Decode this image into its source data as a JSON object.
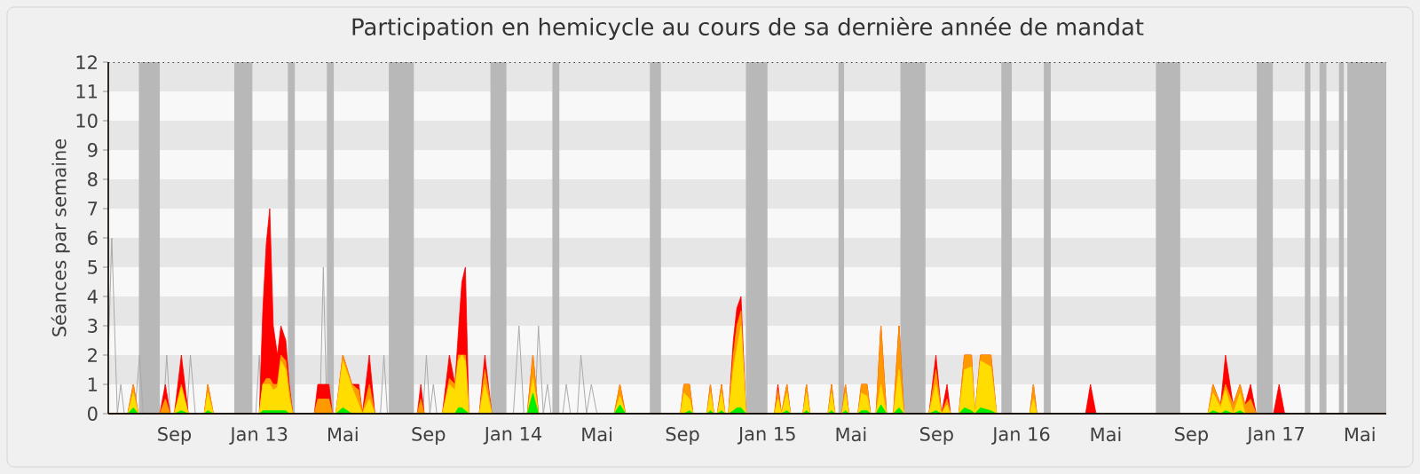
{
  "chart_data": {
    "type": "area",
    "title": "Participation en hemicycle au cours de sa dernière année de mandat",
    "ylabel": "Séances par semaine",
    "xlim": [
      "2012-05-29",
      "2017-06-08"
    ],
    "ylim": [
      0,
      12
    ],
    "yticks": [
      0,
      1,
      2,
      3,
      4,
      5,
      6,
      7,
      8,
      9,
      10,
      11,
      12
    ],
    "xticks": [
      {
        "value": "2012-09-01",
        "label": "Sep"
      },
      {
        "value": "2013-01-01",
        "label": "Jan 13"
      },
      {
        "value": "2013-05-01",
        "label": "Mai"
      },
      {
        "value": "2013-09-01",
        "label": "Sep"
      },
      {
        "value": "2014-01-01",
        "label": "Jan 14"
      },
      {
        "value": "2014-05-01",
        "label": "Mai"
      },
      {
        "value": "2014-09-01",
        "label": "Sep"
      },
      {
        "value": "2015-01-01",
        "label": "Jan 15"
      },
      {
        "value": "2015-05-01",
        "label": "Mai"
      },
      {
        "value": "2015-09-01",
        "label": "Sep"
      },
      {
        "value": "2016-01-01",
        "label": "Jan 16"
      },
      {
        "value": "2016-05-01",
        "label": "Mai"
      },
      {
        "value": "2016-09-01",
        "label": "Sep"
      },
      {
        "value": "2017-01-01",
        "label": "Jan 17"
      },
      {
        "value": "2017-05-01",
        "label": "Mai"
      }
    ],
    "bands": [
      {
        "axis": "y",
        "from": 1,
        "to": 2,
        "color": "#e6e6e6"
      },
      {
        "axis": "y",
        "from": 3,
        "to": 4,
        "color": "#e6e6e6"
      },
      {
        "axis": "y",
        "from": 5,
        "to": 6,
        "color": "#e6e6e6"
      },
      {
        "axis": "y",
        "from": 7,
        "to": 8,
        "color": "#e6e6e6"
      },
      {
        "axis": "y",
        "from": 9,
        "to": 10,
        "color": "#e6e6e6"
      },
      {
        "axis": "y",
        "from": 11,
        "to": 12,
        "color": "#e6e6e6"
      },
      {
        "axis": "x",
        "from": "2012-07-12",
        "to": "2012-08-11",
        "color": "#b8b8b8"
      },
      {
        "axis": "x",
        "from": "2012-11-26",
        "to": "2012-12-22",
        "color": "#b8b8b8"
      },
      {
        "axis": "x",
        "from": "2013-02-11",
        "to": "2013-02-21",
        "color": "#b8b8b8"
      },
      {
        "axis": "x",
        "from": "2013-04-08",
        "to": "2013-04-18",
        "color": "#b8b8b8"
      },
      {
        "axis": "x",
        "from": "2013-07-06",
        "to": "2013-08-11",
        "color": "#b8b8b8"
      },
      {
        "axis": "x",
        "from": "2013-11-29",
        "to": "2013-12-22",
        "color": "#b8b8b8"
      },
      {
        "axis": "x",
        "from": "2014-02-26",
        "to": "2014-03-08",
        "color": "#b8b8b8"
      },
      {
        "axis": "x",
        "from": "2014-07-16",
        "to": "2014-08-01",
        "color": "#b8b8b8"
      },
      {
        "axis": "x",
        "from": "2014-12-01",
        "to": "2015-01-01",
        "color": "#b8b8b8"
      },
      {
        "axis": "x",
        "from": "2015-04-13",
        "to": "2015-04-21",
        "color": "#b8b8b8"
      },
      {
        "axis": "x",
        "from": "2015-07-11",
        "to": "2015-08-16",
        "color": "#b8b8b8"
      },
      {
        "axis": "x",
        "from": "2015-12-03",
        "to": "2015-12-18",
        "color": "#b8b8b8"
      },
      {
        "axis": "x",
        "from": "2016-02-02",
        "to": "2016-02-12",
        "color": "#b8b8b8"
      },
      {
        "axis": "x",
        "from": "2016-07-12",
        "to": "2016-08-16",
        "color": "#b8b8b8"
      },
      {
        "axis": "x",
        "from": "2016-12-04",
        "to": "2016-12-27",
        "color": "#b8b8b8"
      },
      {
        "axis": "x",
        "from": "2017-02-11",
        "to": "2017-02-19",
        "color": "#b8b8b8"
      },
      {
        "axis": "x",
        "from": "2017-03-04",
        "to": "2017-03-14",
        "color": "#b8b8b8"
      },
      {
        "axis": "x",
        "from": "2017-04-01",
        "to": "2017-04-08",
        "color": "#b8b8b8"
      },
      {
        "axis": "x",
        "from": "2017-04-13",
        "to": "2017-06-08",
        "color": "#b8b8b8"
      }
    ],
    "ref_lines": [
      {
        "axis": "y",
        "value": 12,
        "line_style": "dotted",
        "color": "#000000"
      }
    ],
    "x": [
      "2012-06-26",
      "2012-07-04",
      "2012-07-11",
      "2012-08-11",
      "2012-08-19",
      "2012-08-26",
      "2012-09-01",
      "2012-09-11",
      "2012-09-21",
      "2012-10-14",
      "2012-10-19",
      "2012-10-27",
      "2013-01-01",
      "2013-01-06",
      "2013-01-11",
      "2013-01-16",
      "2013-01-21",
      "2013-01-27",
      "2013-02-01",
      "2013-02-08",
      "2013-02-13",
      "2013-02-18",
      "2013-03-21",
      "2013-03-26",
      "2013-04-11",
      "2013-04-16",
      "2013-04-21",
      "2013-05-01",
      "2013-05-14",
      "2013-05-24",
      "2013-05-29",
      "2013-06-08",
      "2013-06-16",
      "2013-08-16",
      "2013-08-21",
      "2013-08-26",
      "2013-09-21",
      "2013-10-01",
      "2013-10-09",
      "2013-10-14",
      "2013-10-19",
      "2013-10-24",
      "2013-10-29",
      "2013-11-13",
      "2013-11-21",
      "2013-11-26",
      "2013-12-01",
      "2014-01-21",
      "2014-01-29",
      "2014-02-06",
      "2014-05-26",
      "2014-06-03",
      "2014-06-11",
      "2014-08-29",
      "2014-09-03",
      "2014-09-11",
      "2014-09-16",
      "2014-10-06",
      "2014-10-11",
      "2014-10-16",
      "2014-10-21",
      "2014-10-27",
      "2014-11-01",
      "2014-11-06",
      "2014-11-13",
      "2014-11-18",
      "2014-11-24",
      "2014-12-01",
      "2015-01-11",
      "2015-01-16",
      "2015-01-21",
      "2015-01-29",
      "2015-02-03",
      "2015-02-21",
      "2015-02-26",
      "2015-03-03",
      "2015-03-29",
      "2015-04-03",
      "2015-04-08",
      "2015-04-18",
      "2015-04-23",
      "2015-04-28",
      "2015-05-11",
      "2015-05-16",
      "2015-05-24",
      "2015-05-29",
      "2015-06-06",
      "2015-06-13",
      "2015-06-21",
      "2015-07-01",
      "2015-07-09",
      "2015-07-16",
      "2015-08-21",
      "2015-08-31",
      "2015-09-08",
      "2015-09-16",
      "2015-09-21",
      "2015-10-03",
      "2015-10-11",
      "2015-10-21",
      "2015-10-26",
      "2015-11-03",
      "2015-11-18",
      "2015-11-26",
      "2016-01-13",
      "2016-01-18",
      "2016-01-23",
      "2016-04-02",
      "2016-04-09",
      "2016-04-17",
      "2016-09-25",
      "2016-10-02",
      "2016-10-13",
      "2016-10-20",
      "2016-10-31",
      "2016-11-10",
      "2016-11-17",
      "2016-11-25",
      "2016-12-03",
      "2016-12-28",
      "2017-01-05",
      "2017-01-13"
    ],
    "series": [
      {
        "type": "line",
        "color": "#aaaaaa",
        "x": [
          "2012-05-29",
          "2012-06-03",
          "2012-06-11",
          "2012-06-16",
          "2012-06-21",
          "2012-07-06",
          "2012-07-13",
          "2012-07-18",
          "2012-08-16",
          "2012-08-21",
          "2012-08-26",
          "2012-09-19",
          "2012-09-24",
          "2012-10-01",
          "2012-12-27",
          "2013-01-01",
          "2013-01-04",
          "2013-03-29",
          "2013-04-03",
          "2013-04-08",
          "2013-06-24",
          "2013-06-29",
          "2013-07-04",
          "2013-08-24",
          "2013-08-29",
          "2013-09-03",
          "2013-09-08",
          "2013-09-13",
          "2014-01-01",
          "2014-01-09",
          "2014-01-16",
          "2014-02-01",
          "2014-02-06",
          "2014-02-13",
          "2014-02-19",
          "2014-02-24",
          "2014-03-13",
          "2014-03-18",
          "2014-03-24",
          "2014-04-03",
          "2014-04-08",
          "2014-04-16",
          "2014-04-23",
          "2014-05-01"
        ],
        "values": [
          2,
          6,
          0,
          1,
          0,
          0,
          2,
          0,
          0,
          2,
          0,
          0,
          2,
          0,
          0,
          2,
          0,
          0,
          5,
          0,
          0,
          2,
          0,
          0,
          2,
          0,
          1,
          0,
          0,
          3,
          0,
          0,
          3,
          0,
          1,
          0,
          0,
          1,
          0,
          0,
          2,
          0,
          1,
          0
        ]
      },
      {
        "color": "#ff0000",
        "values": [
          0,
          1,
          0,
          0,
          1,
          0,
          0,
          2,
          0,
          0,
          1,
          0,
          0,
          3.5,
          5.8,
          7,
          3,
          2,
          3,
          2.5,
          1,
          0,
          0,
          1,
          1,
          0,
          0,
          2,
          1,
          1,
          0,
          2,
          0,
          0,
          1,
          0,
          0,
          2,
          1,
          2.8,
          4.5,
          5,
          0,
          0,
          2,
          1,
          0,
          0,
          2,
          0,
          0,
          1,
          0,
          0,
          1,
          1,
          0,
          0,
          1,
          0,
          0,
          1,
          0,
          0,
          2.5,
          3.6,
          4,
          0,
          0,
          1,
          0,
          1,
          0,
          0,
          1,
          0,
          0,
          1,
          0,
          0,
          1,
          0,
          0,
          1,
          1,
          0,
          0,
          3,
          0,
          0,
          3,
          0,
          0,
          2,
          0,
          1,
          0,
          0,
          2,
          2,
          0,
          2,
          2,
          0,
          0,
          1,
          0,
          0,
          1,
          0,
          0,
          1,
          0.3,
          2,
          0.3,
          1,
          0.3,
          1,
          0,
          0,
          1,
          0
        ]
      },
      {
        "color": "#ff9900",
        "values": [
          0,
          1,
          0,
          0,
          0.5,
          0,
          0,
          1,
          0,
          0,
          1,
          0,
          0,
          1,
          1.2,
          1.2,
          1,
          1,
          2,
          1.8,
          0.8,
          0,
          0,
          0.5,
          0.5,
          0,
          0,
          2,
          1,
          0.8,
          0,
          1,
          0,
          0,
          0.5,
          0,
          0,
          1.2,
          1,
          2,
          2,
          2,
          0,
          0,
          1.5,
          0.8,
          0,
          0,
          2,
          0,
          0,
          1,
          0,
          0,
          1,
          1,
          0,
          0,
          1,
          0,
          0,
          1,
          0,
          0,
          2,
          3,
          3.5,
          0,
          0,
          0.8,
          0,
          1,
          0,
          0,
          1,
          0,
          0,
          1,
          0,
          0,
          1,
          0,
          0,
          1,
          1,
          0,
          0,
          3,
          0,
          0,
          3,
          0,
          0,
          1.5,
          0,
          0.5,
          0,
          0,
          2,
          2,
          0,
          2,
          2,
          0,
          0,
          1,
          0,
          0,
          0,
          0,
          0,
          1,
          0.3,
          1,
          0.3,
          1,
          0.3,
          0.5,
          0,
          0,
          0,
          0
        ]
      },
      {
        "color": "#ffdd00",
        "values": [
          0,
          0.7,
          0,
          0,
          0,
          0,
          0,
          0.9,
          0,
          0,
          0.7,
          0,
          0,
          1,
          1,
          1,
          0.8,
          0.9,
          1.8,
          1.5,
          0.5,
          0,
          0,
          0,
          0,
          0,
          0,
          1.8,
          0.9,
          0.3,
          0,
          0.5,
          0,
          0,
          0,
          0,
          0,
          1,
          0.8,
          1.8,
          2,
          1.8,
          0,
          0,
          1,
          0.5,
          0,
          0,
          1.2,
          0,
          0,
          0.6,
          0,
          0,
          0.7,
          0.5,
          0,
          0,
          0.7,
          0,
          0,
          0.7,
          0,
          0,
          1.5,
          2.2,
          3,
          0,
          0,
          0.5,
          0,
          0.7,
          0,
          0,
          0.7,
          0,
          0,
          0.7,
          0,
          0,
          0.7,
          0,
          0,
          0.7,
          0.6,
          0,
          0,
          1,
          0,
          0,
          1.5,
          0,
          0,
          1,
          0,
          0.3,
          0,
          0,
          1.5,
          1.6,
          0,
          1.8,
          1.6,
          0,
          0,
          0.5,
          0,
          0,
          0,
          0,
          0,
          0.7,
          0.2,
          0.8,
          0,
          0.7,
          0,
          0,
          0,
          0,
          0,
          0
        ]
      },
      {
        "color": "#00ee00",
        "values": [
          0,
          0.2,
          0,
          0,
          0,
          0,
          0,
          0.1,
          0,
          0,
          0.1,
          0,
          0,
          0.1,
          0.1,
          0.1,
          0.1,
          0.1,
          0.1,
          0.1,
          0,
          0,
          0,
          0,
          0,
          0,
          0,
          0.2,
          0,
          0,
          0,
          0,
          0,
          0,
          0,
          0,
          0,
          0,
          0,
          0.2,
          0.2,
          0.1,
          0,
          0,
          0,
          0,
          0,
          0,
          0.7,
          0,
          0,
          0.3,
          0,
          0,
          0,
          0.1,
          0,
          0,
          0.1,
          0,
          0,
          0.1,
          0,
          0,
          0.1,
          0.2,
          0.2,
          0,
          0,
          0,
          0,
          0.1,
          0,
          0,
          0.1,
          0,
          0,
          0.1,
          0,
          0,
          0.1,
          0,
          0,
          0.1,
          0.1,
          0,
          0,
          0.3,
          0,
          0,
          0.2,
          0,
          0,
          0.1,
          0,
          0,
          0,
          0,
          0.2,
          0.1,
          0,
          0.2,
          0.1,
          0,
          0,
          0,
          0,
          0,
          0,
          0,
          0,
          0.1,
          0,
          0.1,
          0,
          0.1,
          0,
          0,
          0,
          0,
          0,
          0
        ]
      }
    ]
  }
}
